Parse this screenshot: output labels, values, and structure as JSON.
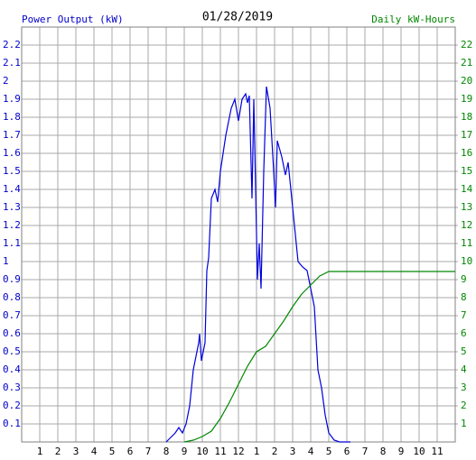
{
  "chart_data": {
    "type": "line",
    "title": "01/28/2019",
    "ylabel": "Power Output (kW)",
    "y2label": "Daily kW-Hours",
    "xlim": [
      0,
      24
    ],
    "ylim": [
      0,
      2.3
    ],
    "y2lim": [
      0,
      23
    ],
    "grid": true,
    "xticks": [
      1,
      2,
      3,
      4,
      5,
      6,
      7,
      8,
      9,
      10,
      11,
      12,
      {
        "value": 13,
        "label": "1"
      },
      {
        "value": 14,
        "label": "2"
      },
      {
        "value": 15,
        "label": "3"
      },
      {
        "value": 16,
        "label": "4"
      },
      {
        "value": 17,
        "label": "5"
      },
      {
        "value": 18,
        "label": "6"
      },
      {
        "value": 19,
        "label": "7"
      },
      {
        "value": 20,
        "label": "8"
      },
      {
        "value": 21,
        "label": "9"
      },
      {
        "value": 22,
        "label": "10"
      },
      {
        "value": 23,
        "label": "11"
      }
    ],
    "yticks": [
      0.1,
      0.2,
      0.3,
      0.4,
      0.5,
      0.6,
      0.7,
      0.8,
      0.9,
      1.0,
      1.1,
      1.2,
      1.3,
      1.4,
      1.5,
      1.6,
      1.7,
      1.8,
      1.9,
      2.0,
      2.1,
      2.2
    ],
    "y2ticks": [
      1,
      2,
      3,
      4,
      5,
      6,
      7,
      8,
      9,
      10,
      11,
      12,
      13,
      14,
      15,
      16,
      17,
      18,
      19,
      20,
      21,
      22
    ],
    "series": [
      {
        "color": "#0000dd",
        "x": [
          8.0,
          8.2,
          8.5,
          8.7,
          8.9,
          9.1,
          9.3,
          9.5,
          9.8,
          9.85,
          9.95,
          10.05,
          10.15,
          10.25,
          10.35,
          10.5,
          10.7,
          10.85,
          11.0,
          11.3,
          11.6,
          11.8,
          12.0,
          12.2,
          12.4,
          12.5,
          12.6,
          12.75,
          12.85,
          13.05,
          13.15,
          13.25,
          13.4,
          13.55,
          13.75,
          13.95,
          14.05,
          14.15,
          14.4,
          14.6,
          14.75,
          15.0,
          15.3,
          15.55,
          15.8,
          16.0,
          16.2,
          16.4,
          16.6,
          16.8,
          17.0,
          17.3,
          17.6,
          18.2
        ],
        "values": [
          0,
          0.02,
          0.05,
          0.08,
          0.05,
          0.1,
          0.2,
          0.4,
          0.55,
          0.6,
          0.45,
          0.5,
          0.55,
          0.95,
          1.02,
          1.35,
          1.4,
          1.33,
          1.5,
          1.7,
          1.85,
          1.9,
          1.78,
          1.9,
          1.93,
          1.88,
          1.92,
          1.35,
          1.9,
          0.9,
          1.1,
          0.85,
          1.5,
          1.97,
          1.85,
          1.5,
          1.3,
          1.67,
          1.58,
          1.48,
          1.55,
          1.3,
          1.0,
          0.97,
          0.95,
          0.85,
          0.75,
          0.4,
          0.3,
          0.15,
          0.05,
          0.01,
          0,
          0
        ]
      },
      {
        "color": "#008800",
        "axis": "y2",
        "x": [
          9.0,
          9.5,
          10.0,
          10.5,
          11.0,
          11.5,
          12.0,
          12.5,
          13.0,
          13.5,
          14.0,
          14.5,
          15.0,
          15.5,
          16.0,
          16.5,
          17.0,
          24.0
        ],
        "values": [
          0,
          0.1,
          0.3,
          0.6,
          1.3,
          2.2,
          3.2,
          4.2,
          5.0,
          5.3,
          6.0,
          6.7,
          7.5,
          8.2,
          8.7,
          9.2,
          9.45,
          9.45
        ]
      }
    ]
  }
}
